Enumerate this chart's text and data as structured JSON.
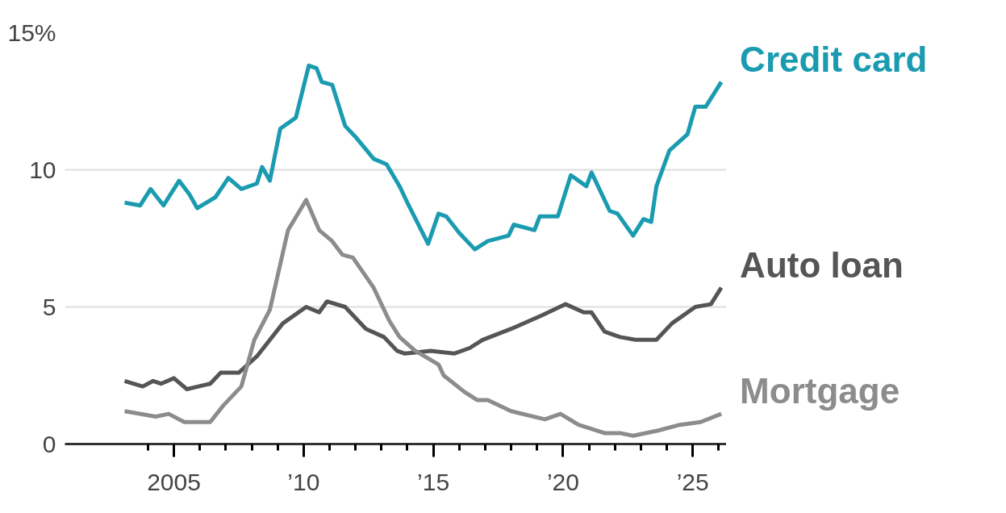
{
  "chart_data": {
    "type": "line",
    "x": [
      2003.1,
      2003.7,
      2004.1,
      2004.6,
      2005.2,
      2005.6,
      2005.9,
      2006.6,
      2007.1,
      2007.6,
      2008.2,
      2008.4,
      2008.7,
      2009.1,
      2009.7,
      2010.2,
      2010.5,
      2010.7,
      2011.1,
      2011.6,
      2012.0,
      2012.7,
      2013.2,
      2013.7,
      2014.0,
      2014.8,
      2015.2,
      2015.5,
      2016.0,
      2016.6,
      2017.1,
      2017.9,
      2018.1,
      2018.9,
      2019.1,
      2019.8,
      2020.3,
      2020.9,
      2021.1,
      2021.8,
      2022.1,
      2022.7,
      2023.1,
      2023.4,
      2023.6,
      2024.1,
      2024.8,
      2025.1,
      2025.5,
      2026.1
    ],
    "series": [
      {
        "name": "Credit card",
        "color": "#1a9bb0",
        "values": [
          8.8,
          8.7,
          9.3,
          8.7,
          9.6,
          9.1,
          8.6,
          9.0,
          9.7,
          9.3,
          9.5,
          10.1,
          9.6,
          11.5,
          11.9,
          13.8,
          13.7,
          13.2,
          13.1,
          11.6,
          11.2,
          10.4,
          10.2,
          9.4,
          8.8,
          7.3,
          8.4,
          8.3,
          7.7,
          7.1,
          7.4,
          7.6,
          8.0,
          7.8,
          8.3,
          8.3,
          9.8,
          9.4,
          9.9,
          8.5,
          8.4,
          7.6,
          8.2,
          8.1,
          9.4,
          10.7,
          11.3,
          12.3,
          12.3,
          13.2
        ]
      },
      {
        "name": "Auto loan",
        "color": "#555555",
        "x": [
          2003.1,
          2003.8,
          2004.2,
          2004.5,
          2005.0,
          2005.5,
          2006.4,
          2006.8,
          2007.5,
          2008.2,
          2009.2,
          2010.1,
          2010.6,
          2010.9,
          2011.6,
          2012.4,
          2013.1,
          2013.6,
          2013.9,
          2014.9,
          2015.8,
          2016.4,
          2016.9,
          2018.0,
          2019.2,
          2020.1,
          2020.8,
          2021.1,
          2021.6,
          2022.2,
          2022.8,
          2023.6,
          2024.2,
          2025.1,
          2025.7,
          2026.1
        ],
        "values": [
          2.3,
          2.1,
          2.3,
          2.2,
          2.4,
          2.0,
          2.2,
          2.6,
          2.6,
          3.2,
          4.4,
          5.0,
          4.8,
          5.2,
          5.0,
          4.2,
          3.9,
          3.4,
          3.3,
          3.4,
          3.3,
          3.5,
          3.8,
          4.2,
          4.7,
          5.1,
          4.8,
          4.8,
          4.1,
          3.9,
          3.8,
          3.8,
          4.4,
          5.0,
          5.1,
          5.7
        ]
      },
      {
        "name": "Mortgage",
        "color": "#8c8c8c",
        "x": [
          2003.1,
          2004.3,
          2004.8,
          2005.4,
          2006.4,
          2006.9,
          2007.6,
          2008.1,
          2008.7,
          2009.4,
          2010.1,
          2010.6,
          2011.1,
          2011.5,
          2011.9,
          2012.7,
          2013.3,
          2013.7,
          2014.3,
          2015.2,
          2015.4,
          2016.2,
          2016.7,
          2017.1,
          2018.0,
          2019.3,
          2019.9,
          2020.6,
          2021.6,
          2022.2,
          2022.7,
          2023.7,
          2024.5,
          2025.3,
          2026.1
        ],
        "values": [
          1.2,
          1.0,
          1.1,
          0.8,
          0.8,
          1.4,
          2.1,
          3.8,
          4.9,
          7.8,
          8.9,
          7.8,
          7.4,
          6.9,
          6.8,
          5.7,
          4.5,
          3.9,
          3.4,
          2.9,
          2.5,
          1.9,
          1.6,
          1.6,
          1.2,
          0.9,
          1.1,
          0.7,
          0.4,
          0.4,
          0.3,
          0.5,
          0.7,
          0.8,
          1.1
        ]
      }
    ],
    "xlim": [
      2000.8,
      2026.3
    ],
    "xticks": [
      {
        "value": 2004,
        "label": null
      },
      {
        "value": 2005,
        "label": "2005"
      },
      {
        "value": 2006,
        "label": null
      },
      {
        "value": 2007,
        "label": null
      },
      {
        "value": 2008,
        "label": null
      },
      {
        "value": 2009,
        "label": null
      },
      {
        "value": 2010,
        "label": "’10"
      },
      {
        "value": 2011,
        "label": null
      },
      {
        "value": 2012,
        "label": null
      },
      {
        "value": 2013,
        "label": null
      },
      {
        "value": 2014,
        "label": null
      },
      {
        "value": 2015,
        "label": "’15"
      },
      {
        "value": 2016,
        "label": null
      },
      {
        "value": 2017,
        "label": null
      },
      {
        "value": 2018,
        "label": null
      },
      {
        "value": 2019,
        "label": null
      },
      {
        "value": 2020,
        "label": "’20"
      },
      {
        "value": 2021,
        "label": null
      },
      {
        "value": 2022,
        "label": null
      },
      {
        "value": 2023,
        "label": null
      },
      {
        "value": 2024,
        "label": null
      },
      {
        "value": 2025,
        "label": "’25"
      },
      {
        "value": 2026,
        "label": null
      }
    ],
    "ylim": [
      0,
      15
    ],
    "yticks": [
      0,
      5,
      10,
      {
        "value": 15,
        "label": "15%"
      }
    ],
    "grid": "y",
    "legend": false,
    "marker": "none",
    "line_style": "solid"
  }
}
